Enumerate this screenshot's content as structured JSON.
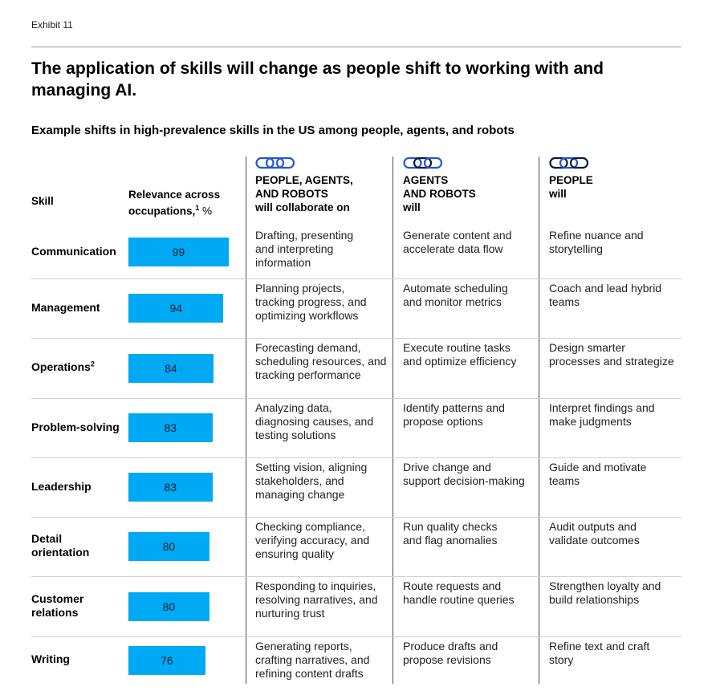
{
  "exhibit": "Exhibit 11",
  "title": "The application of skills will change as people shift to working with and managing AI.",
  "subtitle": "Example shifts in high-prevalence skills in the US among people, agents, and robots",
  "headers": {
    "skill": "Skill",
    "relevance_line1": "Relevance across",
    "relevance_line2_main": "occupations,",
    "relevance_sup": "1",
    "relevance_unit": " %",
    "collab_line1": "PEOPLE, AGENTS,",
    "collab_line2": "AND ROBOTS",
    "collab_line3": "will collaborate on",
    "agents_line1": "AGENTS",
    "agents_line2": "AND ROBOTS",
    "agents_line3": "will",
    "people_line1": "PEOPLE",
    "people_line2": "will"
  },
  "colors": {
    "bar": "#00a9f4",
    "icon_blue": "#2255d9",
    "icon_dark": "#0b1a33"
  },
  "chart_data": {
    "type": "bar",
    "title": "Relevance across occupations, %",
    "categories": [
      "Communication",
      "Management",
      "Operations",
      "Problem-solving",
      "Leadership",
      "Detail orientation",
      "Customer relations",
      "Writing"
    ],
    "values": [
      99,
      94,
      84,
      83,
      83,
      80,
      80,
      76
    ],
    "xlim": [
      0,
      100
    ]
  },
  "rows": [
    {
      "skill": [
        "Communication"
      ],
      "sup": "",
      "value": "99",
      "collab": [
        "Drafting, presenting",
        "and interpreting",
        "information"
      ],
      "agents": [
        "Generate content and",
        "accelerate data flow"
      ],
      "people": [
        "Refine nuance and",
        "storytelling"
      ]
    },
    {
      "skill": [
        "Management"
      ],
      "sup": "",
      "value": "94",
      "collab": [
        "Planning projects,",
        "tracking progress, and",
        "optimizing workflows"
      ],
      "agents": [
        "Automate scheduling",
        "and monitor metrics"
      ],
      "people": [
        "Coach and lead hybrid",
        "teams"
      ]
    },
    {
      "skill": [
        "Operations"
      ],
      "sup": "2",
      "value": "84",
      "collab": [
        "Forecasting demand,",
        "scheduling resources, and",
        "tracking performance"
      ],
      "agents": [
        "Execute routine tasks",
        "and optimize efficiency"
      ],
      "people": [
        "Design smarter",
        "processes and strategize"
      ]
    },
    {
      "skill": [
        "Problem-solving"
      ],
      "sup": "",
      "value": "83",
      "collab": [
        "Analyzing data,",
        "diagnosing causes, and",
        "testing solutions"
      ],
      "agents": [
        "Identify patterns and",
        "propose options"
      ],
      "people": [
        "Interpret findings and",
        "make judgments"
      ]
    },
    {
      "skill": [
        "Leadership"
      ],
      "sup": "",
      "value": "83",
      "collab": [
        "Setting vision, aligning",
        "stakeholders, and",
        "managing change"
      ],
      "agents": [
        "Drive change and",
        "support decision-making"
      ],
      "people": [
        "Guide and motivate",
        "teams"
      ]
    },
    {
      "skill": [
        "Detail",
        "orientation"
      ],
      "sup": "",
      "value": "80",
      "collab": [
        "Checking compliance,",
        "verifying accuracy, and",
        "ensuring quality"
      ],
      "agents": [
        "Run quality checks",
        "and flag anomalies"
      ],
      "people": [
        "Audit outputs and",
        "validate outcomes"
      ]
    },
    {
      "skill": [
        "Customer",
        "relations"
      ],
      "sup": "",
      "value": "80",
      "collab": [
        "Responding to inquiries,",
        "resolving narratives, and",
        "nurturing trust"
      ],
      "agents": [
        "Route requests and",
        "handle routine queries"
      ],
      "people": [
        "Strengthen loyalty and",
        "build relationships"
      ]
    },
    {
      "skill": [
        "Writing"
      ],
      "sup": "",
      "value": "76",
      "collab": [
        "Generating reports,",
        "crafting narratives, and",
        "refining content drafts"
      ],
      "agents": [
        "Produce drafts and",
        "propose revisions"
      ],
      "people": [
        "Refine text and craft",
        "story"
      ]
    }
  ]
}
